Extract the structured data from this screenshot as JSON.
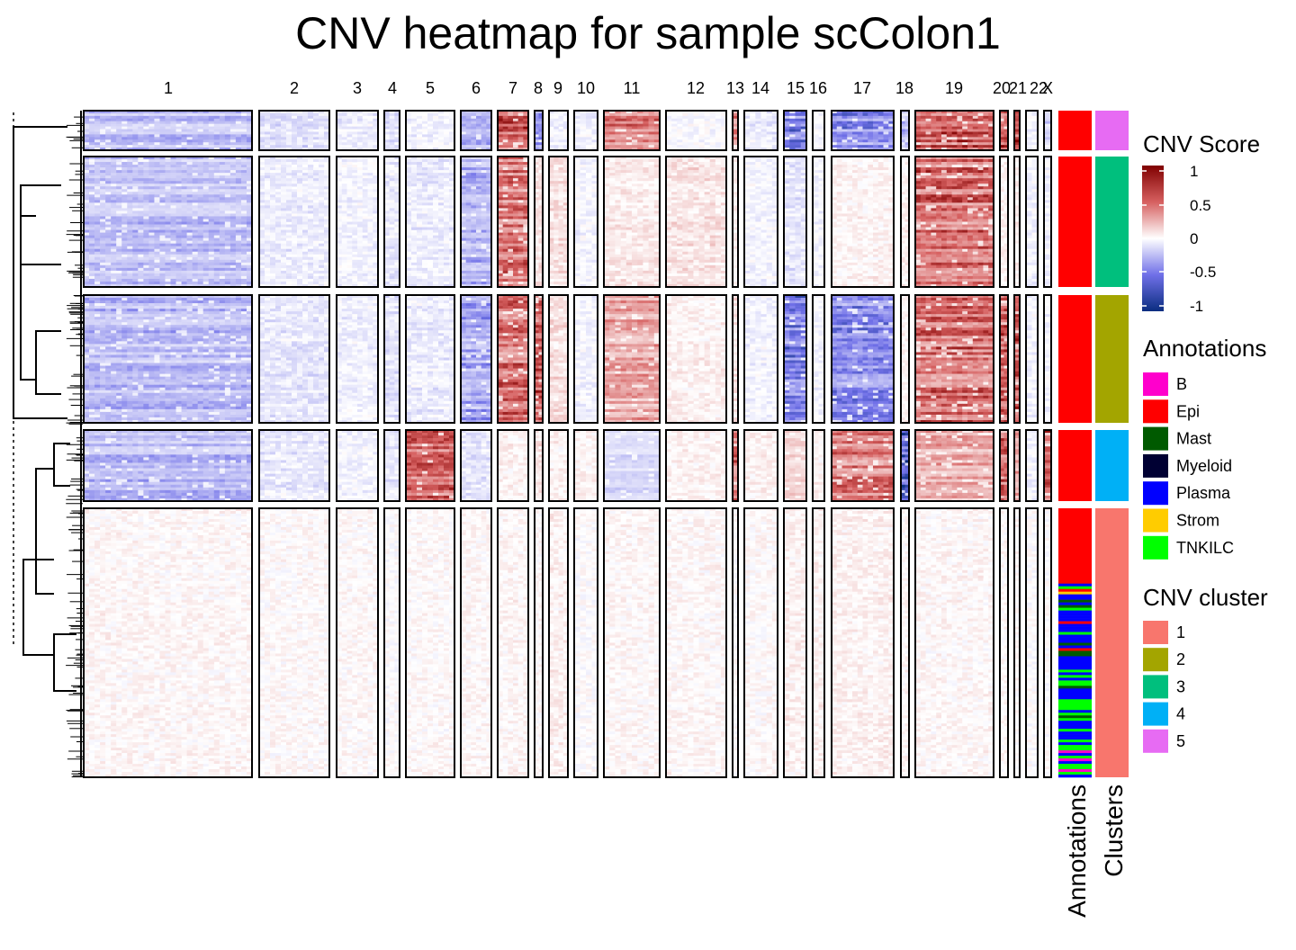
{
  "chart_data": {
    "type": "heatmap",
    "title": "CNV heatmap for sample scColon1",
    "xlabel": "",
    "ylabel": "",
    "chromosomes": [
      "1",
      "2",
      "3",
      "4",
      "5",
      "6",
      "7",
      "8",
      "9",
      "10",
      "11",
      "12",
      "13",
      "14",
      "15",
      "16",
      "17",
      "18",
      "19",
      "20",
      "21",
      "22",
      "X"
    ],
    "row_blocks": [
      {
        "cluster": "5",
        "annotation": "Epi",
        "cluster_color": "#E76BF3",
        "cnv_profile": [
          -0.3,
          -0.12,
          -0.08,
          -0.1,
          -0.05,
          -0.35,
          0.6,
          -0.4,
          -0.05,
          -0.05,
          0.45,
          -0.02,
          0.4,
          -0.1,
          -0.5,
          -0.05,
          -0.45,
          -0.3,
          0.6,
          0.7,
          0.7,
          -0.05,
          -0.2
        ]
      },
      {
        "cluster": "3",
        "annotation": "Epi",
        "cluster_color": "#00BF7D",
        "cnv_profile": [
          -0.25,
          -0.08,
          -0.05,
          -0.1,
          -0.08,
          -0.3,
          0.5,
          0.1,
          0.12,
          -0.05,
          0.08,
          0.1,
          0.05,
          -0.05,
          -0.1,
          -0.05,
          0.05,
          0.05,
          0.55,
          0.05,
          0.05,
          -0.05,
          -0.05
        ]
      },
      {
        "cluster": "2",
        "annotation": "Epi",
        "cluster_color": "#A3A500",
        "cnv_profile": [
          -0.28,
          -0.1,
          -0.06,
          -0.12,
          -0.08,
          -0.35,
          0.55,
          0.6,
          0.12,
          -0.05,
          0.3,
          0.05,
          0.1,
          -0.05,
          -0.55,
          -0.05,
          -0.45,
          0.05,
          0.55,
          0.6,
          0.6,
          -0.05,
          -0.05
        ]
      },
      {
        "cluster": "4",
        "annotation": "Epi",
        "cluster_color": "#00B0F6",
        "cnv_profile": [
          -0.3,
          -0.1,
          -0.05,
          -0.1,
          0.55,
          -0.1,
          0.05,
          0.1,
          0.05,
          0.05,
          -0.15,
          0.05,
          0.5,
          0.05,
          0.15,
          0.05,
          0.45,
          -0.7,
          0.3,
          0.6,
          0.3,
          -0.05,
          0.6
        ]
      },
      {
        "cluster": "1",
        "annotation": "mixed (Epi, Plasma, TNKILC, Strom, Mast, Myeloid, B)",
        "cluster_color": "#F8766D",
        "cnv_profile": [
          0.03,
          0.02,
          0.02,
          0.0,
          0.02,
          0.03,
          0.03,
          0.02,
          0.05,
          0.0,
          0.03,
          0.03,
          0.0,
          0.02,
          0.05,
          0.05,
          0.05,
          0.02,
          0.03,
          0.02,
          0.02,
          0.0,
          0.0
        ]
      }
    ],
    "color_scale": {
      "title": "CNV Score",
      "range": [
        -1,
        1
      ],
      "ticks": [
        "1",
        "0.5",
        "0",
        "-0.5",
        "-1"
      ],
      "colors": [
        "#0a2d80",
        "#ffffff",
        "#800000"
      ]
    }
  },
  "row_annotation_labels": {
    "annotations": "Annotations",
    "clusters": "Clusters"
  },
  "legend": {
    "cnv_score_title": "CNV Score",
    "annotations_title": "Annotations",
    "annotations": [
      {
        "label": "B",
        "color": "#FF00CC"
      },
      {
        "label": "Epi",
        "color": "#FF0000"
      },
      {
        "label": "Mast",
        "color": "#005A00"
      },
      {
        "label": "Myeloid",
        "color": "#000033"
      },
      {
        "label": "Plasma",
        "color": "#0000FF"
      },
      {
        "label": "Strom",
        "color": "#FFCC00"
      },
      {
        "label": "TNKILC",
        "color": "#00FF00"
      }
    ],
    "cnv_cluster_title": "CNV cluster",
    "clusters": [
      {
        "label": "1",
        "color": "#F8766D"
      },
      {
        "label": "2",
        "color": "#A3A500"
      },
      {
        "label": "3",
        "color": "#00BF7D"
      },
      {
        "label": "4",
        "color": "#00B0F6"
      },
      {
        "label": "5",
        "color": "#E76BF3"
      }
    ]
  }
}
